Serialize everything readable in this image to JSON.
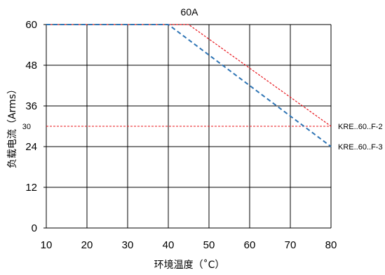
{
  "chart_data": {
    "type": "line",
    "title": "60A",
    "xlabel": "环境温度（˚C）",
    "ylabel": "负载电流（Arms）",
    "xlim": [
      10,
      80
    ],
    "ylim": [
      0,
      60
    ],
    "x_ticks": [
      "10",
      "20",
      "30",
      "40",
      "50",
      "60",
      "70",
      "80"
    ],
    "y_ticks": [
      "0",
      "12",
      "24",
      "36",
      "48",
      "60"
    ],
    "grid": true,
    "series": [
      {
        "name": "KRE..60..F-2",
        "color": "#e8141b",
        "style": "dotted",
        "points": [
          [
            10,
            60
          ],
          [
            45,
            60
          ],
          [
            80,
            30
          ]
        ]
      },
      {
        "name": "KRE..60..F-3",
        "color": "#2f75b5",
        "style": "dashed",
        "points": [
          [
            10,
            60
          ],
          [
            40,
            60
          ],
          [
            80,
            24
          ]
        ]
      }
    ],
    "reference_lines": [
      {
        "y": 30,
        "label": "30",
        "color": "#e8141b",
        "style": "dotted"
      }
    ]
  }
}
